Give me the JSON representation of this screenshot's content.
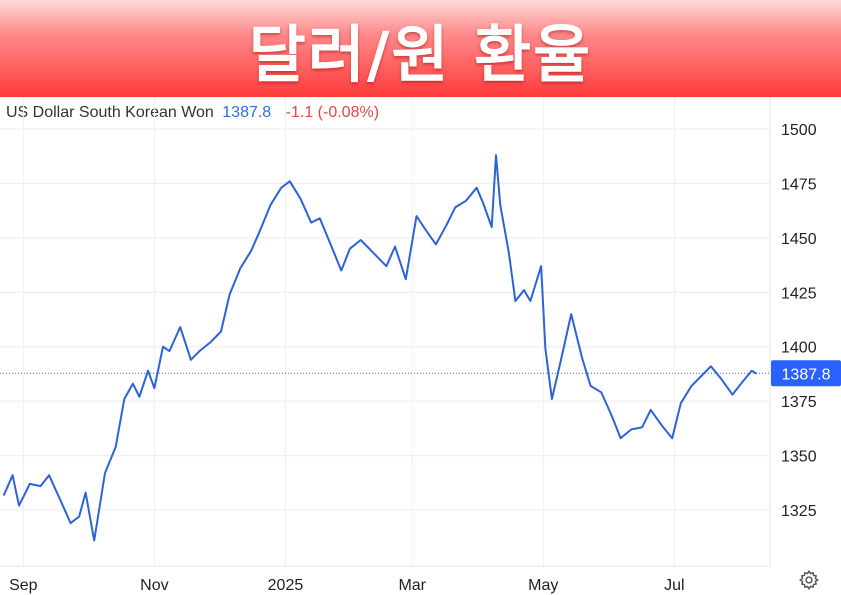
{
  "banner": {
    "title": "달러/원 환율"
  },
  "legend": {
    "name": "US Dollar South Korean Won",
    "price": "1387.8",
    "change": "-1.1 (-0.08%)"
  },
  "icons": {
    "settings": "gear-icon"
  },
  "colors": {
    "line": "#2e63d8",
    "price": "#2f6fd6",
    "change": "#e04848",
    "banner": "#ff3b3b",
    "price_tag_bg": "#2962ff"
  },
  "chart_data": {
    "type": "line",
    "title": "",
    "xlabel": "",
    "ylabel": "",
    "ylim": [
      1300,
      1510
    ],
    "grid": true,
    "y_axis_position": "right",
    "y_ticks": [
      1500,
      1475,
      1450,
      1425,
      1400,
      1375,
      1350,
      1325
    ],
    "x_ticks": [
      {
        "label": "Sep",
        "x": "2024-09-01"
      },
      {
        "label": "Nov",
        "x": "2024-11-01"
      },
      {
        "label": "2025",
        "x": "2025-01-01"
      },
      {
        "label": "Mar",
        "x": "2025-03-01"
      },
      {
        "label": "May",
        "x": "2025-05-01"
      },
      {
        "label": "Jul",
        "x": "2025-07-01"
      }
    ],
    "last_value": 1387.8,
    "last_value_label": "1387.8",
    "series": [
      {
        "x": [
          "2024-08-23",
          "2024-08-27",
          "2024-08-30",
          "2024-09-04",
          "2024-09-09",
          "2024-09-13",
          "2024-09-18",
          "2024-09-23",
          "2024-09-27",
          "2024-09-30",
          "2024-10-04",
          "2024-10-09",
          "2024-10-14",
          "2024-10-18",
          "2024-10-22",
          "2024-10-25",
          "2024-10-29",
          "2024-11-01",
          "2024-11-05",
          "2024-11-08",
          "2024-11-13",
          "2024-11-18",
          "2024-11-22",
          "2024-11-27",
          "2024-12-02",
          "2024-12-06",
          "2024-12-11",
          "2024-12-16",
          "2024-12-20",
          "2024-12-25",
          "2024-12-30",
          "2025-01-03",
          "2025-01-08",
          "2025-01-13",
          "2025-01-17",
          "2025-01-22",
          "2025-01-27",
          "2025-01-31",
          "2025-02-05",
          "2025-02-11",
          "2025-02-17",
          "2025-02-21",
          "2025-02-26",
          "2025-03-03",
          "2025-03-07",
          "2025-03-12",
          "2025-03-17",
          "2025-03-21",
          "2025-03-26",
          "2025-03-31",
          "2025-04-03",
          "2025-04-07",
          "2025-04-09",
          "2025-04-11",
          "2025-04-15",
          "2025-04-18",
          "2025-04-22",
          "2025-04-25",
          "2025-04-30",
          "2025-05-02",
          "2025-05-05",
          "2025-05-09",
          "2025-05-14",
          "2025-05-19",
          "2025-05-23",
          "2025-05-28",
          "2025-06-02",
          "2025-06-06",
          "2025-06-11",
          "2025-06-16",
          "2025-06-20",
          "2025-06-25",
          "2025-06-30",
          "2025-07-04",
          "2025-07-09",
          "2025-07-14",
          "2025-07-18",
          "2025-07-23",
          "2025-07-28",
          "2025-08-01",
          "2025-08-06",
          "2025-08-08"
        ],
        "values": [
          1332,
          1341,
          1327,
          1337,
          1336,
          1341,
          1330,
          1319,
          1322,
          1333,
          1311,
          1342,
          1354,
          1376,
          1383,
          1377,
          1389,
          1381,
          1400,
          1398,
          1409,
          1394,
          1398,
          1402,
          1407,
          1424,
          1436,
          1444,
          1453,
          1465,
          1473,
          1476,
          1468,
          1457,
          1459,
          1447,
          1435,
          1445,
          1449,
          1443,
          1437,
          1446,
          1431,
          1460,
          1454,
          1447,
          1456,
          1464,
          1467,
          1473,
          1466,
          1455,
          1488,
          1465,
          1443,
          1421,
          1426,
          1421,
          1437,
          1399,
          1376,
          1393,
          1415,
          1395,
          1382,
          1379,
          1368,
          1358,
          1362,
          1363,
          1371,
          1364,
          1358,
          1374,
          1382,
          1387,
          1391,
          1385,
          1378,
          1383,
          1389,
          1387.8
        ]
      }
    ]
  }
}
